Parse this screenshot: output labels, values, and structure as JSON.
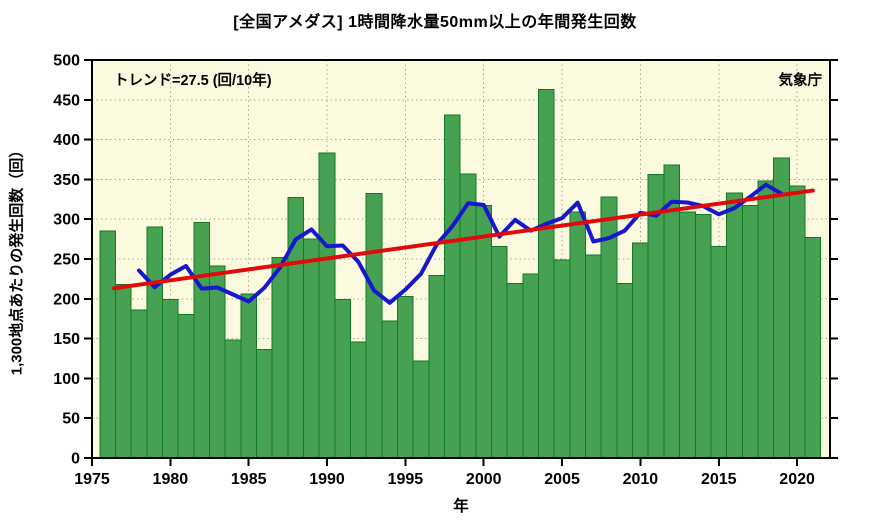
{
  "annotations_note": "all visible text lives in chart_data",
  "chart_data": {
    "type": "bar",
    "title": "[全国アメダス] 1時間降水量50mm以上の年間発生回数",
    "xlabel": "年",
    "ylabel": "1,300地点あたりの発生回数（回）",
    "annotations": {
      "trend_label": "トレンド=27.5 (回/10年)",
      "agency": "気象庁"
    },
    "xlim": [
      1975,
      2022.1
    ],
    "ylim": [
      0,
      500
    ],
    "x_ticks": [
      1975,
      1980,
      1985,
      1990,
      1995,
      2000,
      2005,
      2010,
      2015,
      2020
    ],
    "y_ticks": [
      0,
      50,
      100,
      150,
      200,
      250,
      300,
      350,
      400,
      450,
      500
    ],
    "grid": true,
    "legend": "none",
    "years": [
      1976,
      1977,
      1978,
      1979,
      1980,
      1981,
      1982,
      1983,
      1984,
      1985,
      1986,
      1987,
      1988,
      1989,
      1990,
      1991,
      1992,
      1993,
      1994,
      1995,
      1996,
      1997,
      1998,
      1999,
      2000,
      2001,
      2002,
      2003,
      2004,
      2005,
      2006,
      2007,
      2008,
      2009,
      2010,
      2011,
      2012,
      2013,
      2014,
      2015,
      2016,
      2017,
      2018,
      2019,
      2020,
      2021
    ],
    "series": {
      "annual_count_bars": {
        "values": [
          285,
          218,
          186,
          290,
          199,
          180,
          296,
          241,
          148,
          206,
          136,
          252,
          327,
          275,
          383,
          199,
          146,
          332,
          172,
          203,
          122,
          229,
          431,
          357,
          317,
          266,
          219,
          231,
          463,
          249,
          309,
          255,
          328,
          219,
          270,
          356,
          368,
          309,
          306,
          266,
          333,
          317,
          348,
          377,
          342,
          277
        ],
        "fill_color": "#47A152",
        "edge_color": "#0E7A23"
      },
      "five_year_moving_average": {
        "start_year": 1978,
        "values": [
          235.6,
          214.6,
          230.2,
          241.2,
          212.8,
          214.2,
          205.4,
          196.6,
          213.8,
          239.2,
          274.6,
          287.2,
          266,
          267,
          246.4,
          210.4,
          195,
          211.6,
          231.4,
          268.4,
          291.2,
          320,
          318,
          278,
          299.2,
          285.6,
          294.2,
          301.4,
          320.8,
          272,
          276.2,
          285.6,
          308.2,
          304.4,
          321.8,
          321,
          316.4,
          306.2,
          314,
          328.2,
          343.4,
          332.2
        ],
        "color": "#1717CE"
      },
      "linear_trend": {
        "trend_per_decade": 27.5,
        "start_year": 1976.4,
        "start_value": 213.3,
        "end_year": 2021.0,
        "end_value": 336,
        "color": "#E00A0A"
      }
    },
    "colors": {
      "plot_background": "#FBFADF",
      "grid": "#A9A78F",
      "axis": "#000000"
    }
  }
}
